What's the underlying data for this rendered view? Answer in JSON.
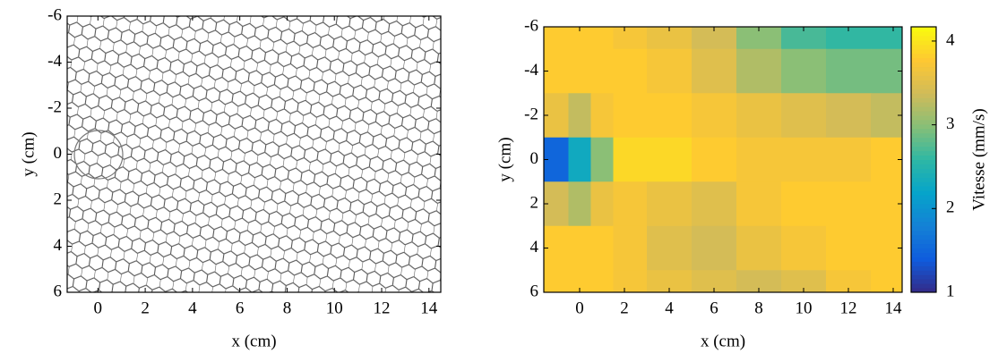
{
  "chart_data": [
    {
      "type": "image",
      "xlabel": "x (cm)",
      "ylabel": "y (cm)",
      "xlim": [
        -1.3,
        14.5
      ],
      "xticks": [
        0,
        2,
        4,
        6,
        8,
        10,
        12,
        14
      ],
      "ylim": [
        -6,
        6
      ],
      "yticks": [
        -6,
        -4,
        -2,
        0,
        2,
        4,
        6
      ],
      "y_reversed": true
    },
    {
      "type": "heatmap",
      "xlabel": "x (cm)",
      "ylabel": "y (cm)",
      "xlim": [
        -1.6,
        14.4
      ],
      "xticks": [
        0,
        2,
        4,
        6,
        8,
        10,
        12,
        14
      ],
      "ylim": [
        -6,
        6
      ],
      "yticks": [
        -6,
        -4,
        -2,
        0,
        2,
        4,
        6
      ],
      "y_reversed": true,
      "x": [
        -1,
        0,
        1,
        2,
        4,
        6,
        8,
        10,
        12,
        14
      ],
      "y": [
        -6,
        -4,
        -2,
        0,
        2,
        4,
        6
      ],
      "z": [
        [
          3.8,
          3.8,
          3.8,
          3.7,
          3.6,
          3.4,
          3.0,
          2.7,
          2.6,
          2.6
        ],
        [
          3.8,
          3.8,
          3.8,
          3.8,
          3.7,
          3.5,
          3.2,
          3.0,
          2.9,
          2.9
        ],
        [
          3.6,
          3.3,
          3.7,
          3.8,
          3.8,
          3.7,
          3.6,
          3.5,
          3.4,
          3.3
        ],
        [
          1.5,
          2.3,
          3.0,
          3.9,
          3.9,
          3.8,
          3.7,
          3.7,
          3.7,
          3.8
        ],
        [
          3.4,
          3.2,
          3.6,
          3.7,
          3.6,
          3.5,
          3.7,
          3.8,
          3.8,
          3.8
        ],
        [
          3.8,
          3.8,
          3.8,
          3.7,
          3.5,
          3.4,
          3.6,
          3.7,
          3.8,
          3.8
        ],
        [
          3.8,
          3.8,
          3.8,
          3.7,
          3.6,
          3.5,
          3.4,
          3.5,
          3.7,
          3.8
        ]
      ],
      "colormap": [
        "#352a87",
        "#0f5cdd",
        "#1481d6",
        "#06a4ca",
        "#2eb7a4",
        "#87bf77",
        "#d1bb59",
        "#fec832",
        "#f9fb0e"
      ],
      "colorbar": {
        "label": "Vitesse (mm/s)",
        "lim": [
          1,
          4.17
        ],
        "ticks": [
          1,
          2,
          3,
          4
        ]
      }
    }
  ]
}
